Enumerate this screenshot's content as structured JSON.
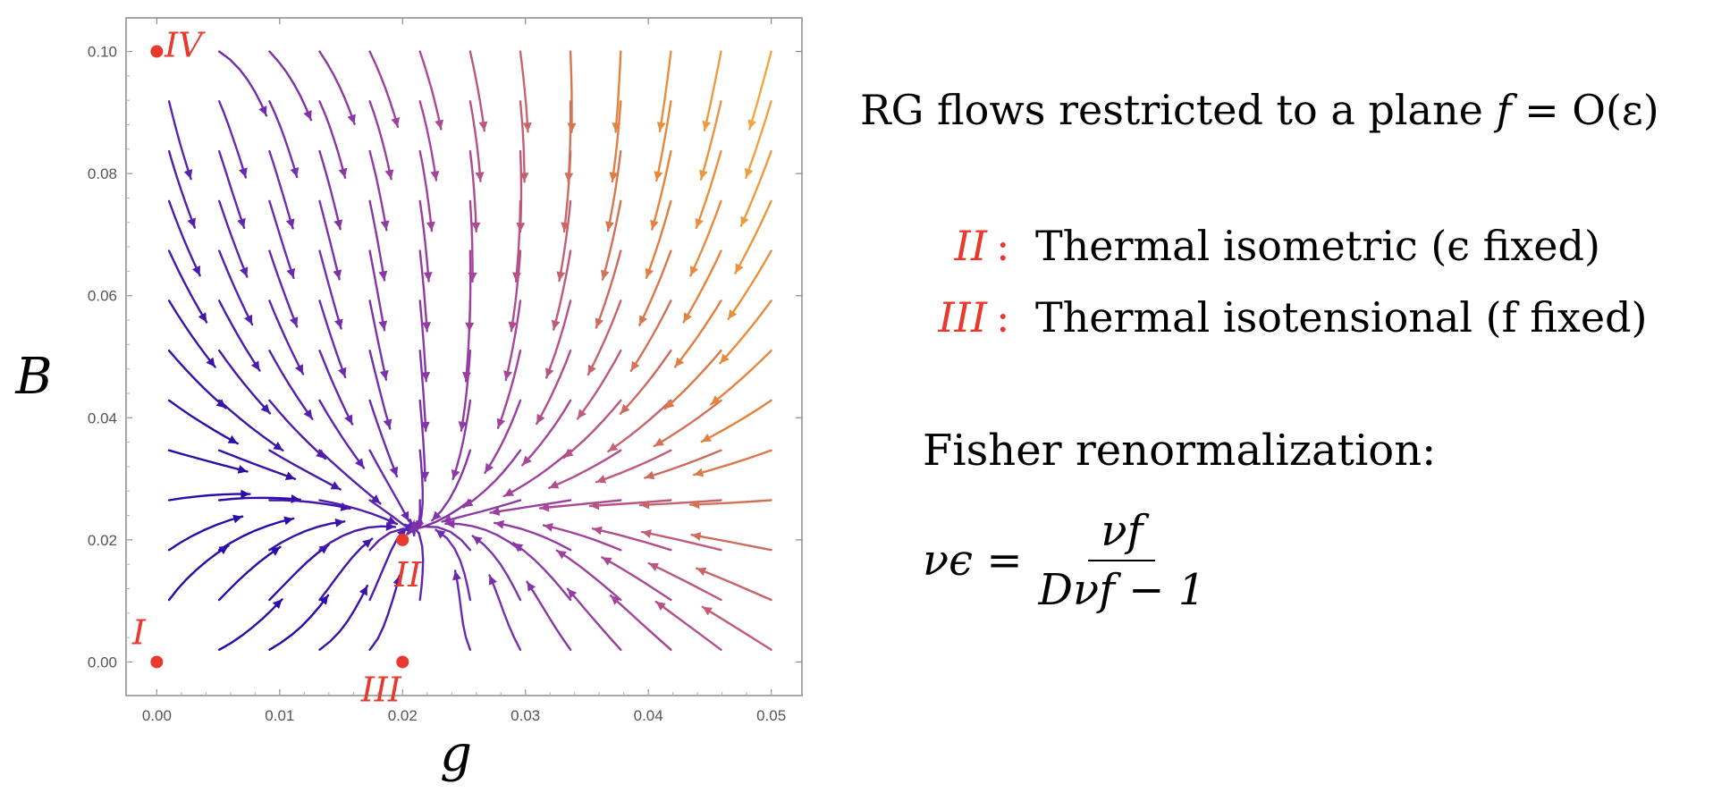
{
  "chart_data": {
    "type": "stream",
    "title": "",
    "xlabel": "g",
    "ylabel": "B",
    "xlim": [
      -0.0025,
      0.0525
    ],
    "ylim": [
      -0.0055,
      0.1055
    ],
    "x_ticks": [
      "0.00",
      "0.01",
      "0.02",
      "0.03",
      "0.04",
      "0.05"
    ],
    "x_tick_values": [
      0.0,
      0.01,
      0.02,
      0.03,
      0.04,
      0.05
    ],
    "y_ticks": [
      "0.00",
      "0.02",
      "0.04",
      "0.06",
      "0.08",
      "0.10"
    ],
    "y_tick_values": [
      0.0,
      0.02,
      0.04,
      0.06,
      0.08,
      0.1
    ],
    "fixed_points": [
      {
        "label": "I",
        "g": 0.0,
        "B": 0.0
      },
      {
        "label": "II",
        "g": 0.02,
        "B": 0.02
      },
      {
        "label": "III",
        "g": 0.02,
        "B": 0.0
      },
      {
        "label": "IV",
        "g": 0.0,
        "B": 0.1
      }
    ],
    "color_scale": [
      "#2a0aa8",
      "#6a2ab0",
      "#a8459a",
      "#e2803f",
      "#f5b040"
    ],
    "fixed_point_color": "#e8392e"
  },
  "annotation": {
    "heading_text": "RG flows restricted to a plane ",
    "heading_math_f": "f",
    "heading_math_rest": " = O(ε)",
    "items": [
      {
        "tag": "II",
        "sep": ":",
        "desc": "Thermal isometric (ϵ fixed)"
      },
      {
        "tag": "III",
        "sep": ":",
        "desc": "Thermal isotensional (f fixed)"
      }
    ],
    "fisher_title": "Fisher renormalization:",
    "formula_lhs": "νϵ =",
    "formula_num": "νf",
    "formula_den": "Dνf − 1"
  }
}
